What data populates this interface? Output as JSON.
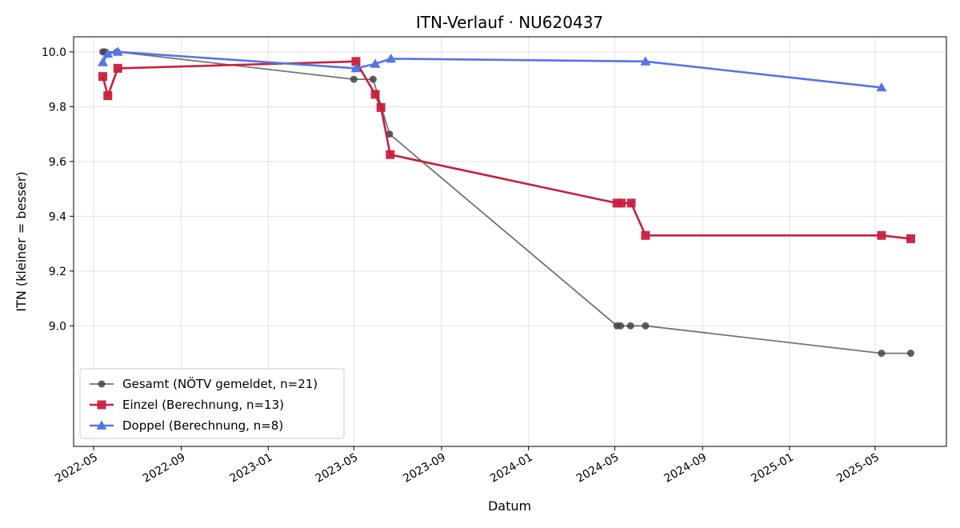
{
  "chart_data": {
    "type": "line",
    "title": "ITN-Verlauf · NU620437",
    "xlabel": "Datum",
    "ylabel": "ITN  (kleiner = besser)",
    "xlim": [
      "2022-04-03",
      "2025-08-09"
    ],
    "ylim": [
      8.56,
      10.055
    ],
    "grid": true,
    "legend_position": "lower-left",
    "x_ticks": [
      "2022-05-01",
      "2022-09-01",
      "2023-01-01",
      "2023-05-01",
      "2023-09-01",
      "2024-01-01",
      "2024-05-01",
      "2024-09-01",
      "2025-01-01",
      "2025-05-01"
    ],
    "x_tick_labels": [
      "2022-05",
      "2022-09",
      "2023-01",
      "2023-05",
      "2023-09",
      "2024-01",
      "2024-05",
      "2024-09",
      "2025-01",
      "2025-05"
    ],
    "y_ticks": [
      9.0,
      9.2,
      9.4,
      9.6,
      9.8,
      10.0
    ],
    "y_tick_labels": [
      "9.0",
      "9.2",
      "9.4",
      "9.6",
      "9.8",
      "10.0"
    ],
    "series": [
      {
        "name": "Gesamt (NÖTV gemeldet, n=21)",
        "color": "#444444",
        "marker": "circle",
        "points": [
          {
            "x": "2022-05-14",
            "y": 10.0
          },
          {
            "x": "2022-05-17",
            "y": 10.0
          },
          {
            "x": "2022-06-03",
            "y": 10.0
          },
          {
            "x": "2023-05-01",
            "y": 9.9
          },
          {
            "x": "2023-05-28",
            "y": 9.9
          },
          {
            "x": "2023-06-20",
            "y": 9.7
          },
          {
            "x": "2024-05-04",
            "y": 9.0
          },
          {
            "x": "2024-05-09",
            "y": 9.0
          },
          {
            "x": "2024-05-23",
            "y": 9.0
          },
          {
            "x": "2024-06-13",
            "y": 9.0
          },
          {
            "x": "2025-05-10",
            "y": 8.9
          },
          {
            "x": "2025-06-20",
            "y": 8.9
          }
        ]
      },
      {
        "name": "Einzel (Berechnung, n=13)",
        "color": "#c8203e",
        "marker": "square",
        "points": [
          {
            "x": "2022-05-14",
            "y": 9.91
          },
          {
            "x": "2022-05-21",
            "y": 9.84
          },
          {
            "x": "2022-06-04",
            "y": 9.94
          },
          {
            "x": "2023-05-04",
            "y": 9.965
          },
          {
            "x": "2023-05-31",
            "y": 9.845
          },
          {
            "x": "2023-06-08",
            "y": 9.797
          },
          {
            "x": "2023-06-21",
            "y": 9.625
          },
          {
            "x": "2024-05-04",
            "y": 9.448
          },
          {
            "x": "2024-05-10",
            "y": 9.448
          },
          {
            "x": "2024-05-24",
            "y": 9.448
          },
          {
            "x": "2024-06-13",
            "y": 9.33
          },
          {
            "x": "2025-05-10",
            "y": 9.33
          },
          {
            "x": "2025-06-20",
            "y": 9.318
          }
        ]
      },
      {
        "name": "Doppel (Berechnung, n=8)",
        "color": "#5575e8",
        "marker": "triangle",
        "points": [
          {
            "x": "2022-05-14",
            "y": 9.962
          },
          {
            "x": "2022-05-21",
            "y": 9.993
          },
          {
            "x": "2022-06-04",
            "y": 10.0
          },
          {
            "x": "2023-05-04",
            "y": 9.94
          },
          {
            "x": "2023-05-31",
            "y": 9.956
          },
          {
            "x": "2023-06-22",
            "y": 9.975
          },
          {
            "x": "2024-06-13",
            "y": 9.965
          },
          {
            "x": "2025-05-10",
            "y": 9.87
          }
        ]
      }
    ]
  }
}
